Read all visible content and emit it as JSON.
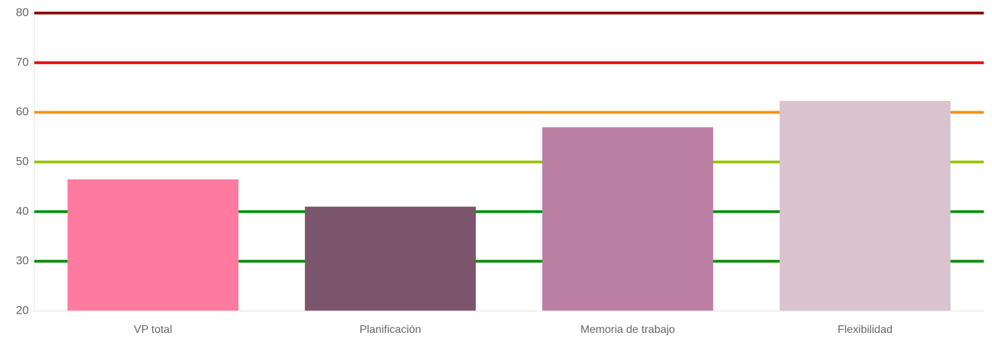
{
  "chart_data": {
    "type": "bar",
    "categories": [
      "VP total",
      "Planificación",
      "Memoria de trabajo",
      "Flexibilidad"
    ],
    "values": [
      46.5,
      41,
      57,
      62.3
    ],
    "colors": [
      "#ff7aa1",
      "#7b556b",
      "#bb7fa3",
      "#d9c3cf"
    ],
    "ylim": [
      20,
      80
    ],
    "yticks": [
      20,
      30,
      40,
      50,
      60,
      70,
      80
    ],
    "reference_lines": [
      {
        "value": 30,
        "color": "#008f00"
      },
      {
        "value": 40,
        "color": "#008f00"
      },
      {
        "value": 50,
        "color": "#99c300"
      },
      {
        "value": 60,
        "color": "#f0921a"
      },
      {
        "value": 70,
        "color": "#ee0000"
      },
      {
        "value": 80,
        "color": "#8b0000"
      }
    ]
  }
}
